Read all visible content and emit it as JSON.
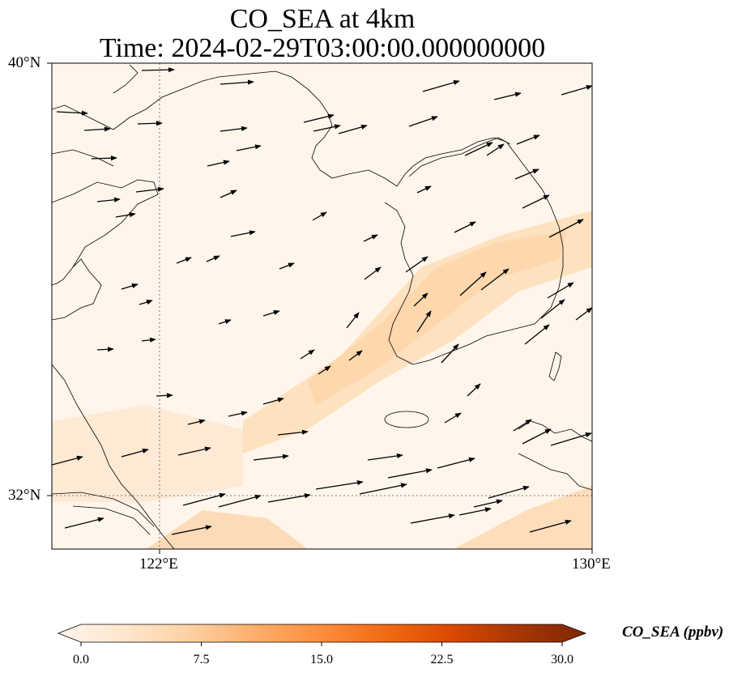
{
  "title": {
    "line1": "CO_SEA at 4km",
    "line2": "Time: 2024-02-29T03:00:00.000000000"
  },
  "axes": {
    "lat_labels": [
      "40°N",
      "32°N"
    ],
    "lon_labels": [
      "122°E",
      "130°E"
    ],
    "extent": {
      "lon_min": 120,
      "lon_max": 130,
      "lat_min": 31,
      "lat_max": 40
    },
    "gridlines": {
      "lon": [
        122
      ],
      "lat": [
        32
      ],
      "style": "dotted"
    }
  },
  "colorbar": {
    "label": "CO_SEA (ppbv)",
    "ticks": [
      "0.0",
      "7.5",
      "15.0",
      "22.5",
      "30.0"
    ],
    "range": [
      0,
      30
    ],
    "colormap": [
      "#fff5eb",
      "#fee6ce",
      "#fdd0a2",
      "#fdae6b",
      "#fd8d3c",
      "#f16913",
      "#d94801",
      "#a63603",
      "#7f2704"
    ],
    "extend": "both"
  },
  "map": {
    "background_color": "#fff5eb",
    "plume_color": "#fdd0a2",
    "wind_vectors": "shown"
  }
}
